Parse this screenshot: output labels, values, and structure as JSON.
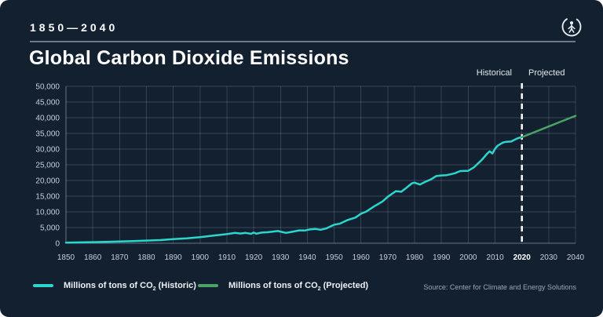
{
  "header": {
    "date_range": "1850—2040",
    "title": "Global Carbon Dioxide Emissions",
    "logo_icon": "person-in-circle-logo"
  },
  "colors": {
    "background": "#132030",
    "historic_line": "#2bd6cc",
    "projected_line": "#4aa468",
    "divider_line": "#ffffff",
    "grid_line": "#aab8c8",
    "tick_label": "#c6cfd9",
    "bold_tick_label": "#ffffff"
  },
  "chart_data": {
    "type": "line",
    "title": "Global Carbon Dioxide Emissions",
    "xlabel": "",
    "ylabel": "",
    "x_range": [
      1850,
      2040
    ],
    "y_range": [
      0,
      50000
    ],
    "grid": true,
    "x_ticks": [
      1850,
      1860,
      1870,
      1880,
      1890,
      1900,
      1910,
      1920,
      1930,
      1940,
      1950,
      1960,
      1970,
      1980,
      1990,
      2000,
      2010,
      2020,
      2030,
      2040
    ],
    "x_tick_labels": [
      "1850",
      "1860",
      "1870",
      "1880",
      "1890",
      "1900",
      "1910",
      "1920",
      "1930",
      "1940",
      "1950",
      "1960",
      "1970",
      "1980",
      "1990",
      "2000",
      "2010",
      "2020",
      "2030",
      "2040"
    ],
    "y_ticks": [
      0,
      5000,
      10000,
      15000,
      20000,
      25000,
      30000,
      35000,
      40000,
      45000,
      50000
    ],
    "y_tick_labels": [
      "0",
      "5,000",
      "10,000",
      "15,000",
      "20,000",
      "25,000",
      "30,000",
      "35,000",
      "40,000",
      "45,000",
      "50,000"
    ],
    "divider_year": 2020,
    "region_labels": {
      "left": "Historical",
      "right": "Projected"
    },
    "series": [
      {
        "name": "Millions of tons of CO2 (Historic)",
        "color": "#2bd6cc",
        "points": [
          [
            1850,
            200
          ],
          [
            1855,
            270
          ],
          [
            1860,
            350
          ],
          [
            1865,
            450
          ],
          [
            1870,
            550
          ],
          [
            1875,
            680
          ],
          [
            1880,
            850
          ],
          [
            1885,
            1000
          ],
          [
            1890,
            1300
          ],
          [
            1895,
            1550
          ],
          [
            1900,
            1950
          ],
          [
            1905,
            2450
          ],
          [
            1910,
            2900
          ],
          [
            1913,
            3300
          ],
          [
            1915,
            3100
          ],
          [
            1917,
            3300
          ],
          [
            1919,
            3000
          ],
          [
            1920,
            3400
          ],
          [
            1921,
            3050
          ],
          [
            1923,
            3400
          ],
          [
            1925,
            3500
          ],
          [
            1927,
            3700
          ],
          [
            1929,
            3900
          ],
          [
            1932,
            3300
          ],
          [
            1934,
            3600
          ],
          [
            1937,
            4100
          ],
          [
            1939,
            4050
          ],
          [
            1941,
            4400
          ],
          [
            1943,
            4550
          ],
          [
            1945,
            4300
          ],
          [
            1947,
            4700
          ],
          [
            1950,
            5900
          ],
          [
            1952,
            6200
          ],
          [
            1955,
            7400
          ],
          [
            1958,
            8200
          ],
          [
            1960,
            9400
          ],
          [
            1962,
            10100
          ],
          [
            1965,
            11800
          ],
          [
            1968,
            13300
          ],
          [
            1970,
            14800
          ],
          [
            1973,
            16600
          ],
          [
            1975,
            16400
          ],
          [
            1977,
            17700
          ],
          [
            1979,
            19100
          ],
          [
            1980,
            19300
          ],
          [
            1982,
            18700
          ],
          [
            1984,
            19600
          ],
          [
            1986,
            20300
          ],
          [
            1988,
            21400
          ],
          [
            1990,
            21600
          ],
          [
            1992,
            21700
          ],
          [
            1995,
            22300
          ],
          [
            1997,
            23000
          ],
          [
            2000,
            23100
          ],
          [
            2002,
            24100
          ],
          [
            2005,
            26500
          ],
          [
            2007,
            28500
          ],
          [
            2008,
            29300
          ],
          [
            2009,
            28600
          ],
          [
            2010,
            30100
          ],
          [
            2011,
            31100
          ],
          [
            2013,
            32100
          ],
          [
            2014,
            32300
          ],
          [
            2016,
            32400
          ],
          [
            2018,
            33300
          ],
          [
            2019,
            33600
          ],
          [
            2020,
            33800
          ]
        ]
      },
      {
        "name": "Millions of tons of CO2 (Projected)",
        "color": "#4aa468",
        "points": [
          [
            2020,
            33800
          ],
          [
            2025,
            35500
          ],
          [
            2030,
            37200
          ],
          [
            2035,
            38900
          ],
          [
            2040,
            40600
          ]
        ]
      }
    ]
  },
  "legend": {
    "items": [
      {
        "pre": "Millions of tons of CO",
        "sub": "2",
        "post": " (Historic)",
        "color": "#2bd6cc"
      },
      {
        "pre": "Millions of tons of CO",
        "sub": "2",
        "post": " (Projected)",
        "color": "#4aa468"
      }
    ]
  },
  "source": "Source: Center for Climate and Energy Solutions"
}
